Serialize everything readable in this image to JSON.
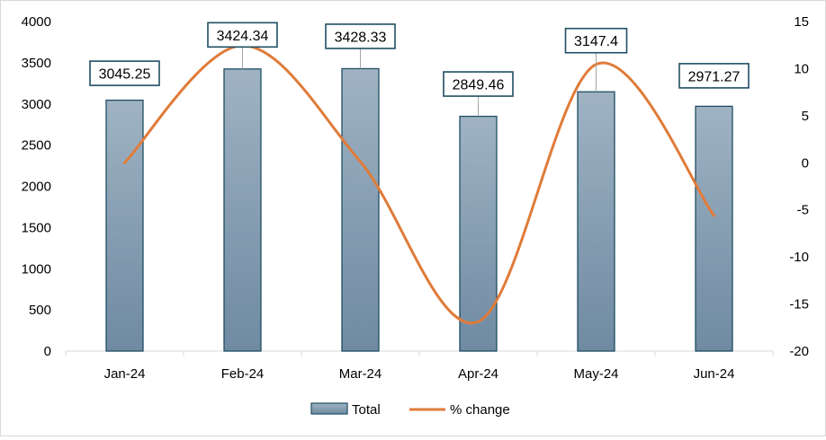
{
  "chart_data": {
    "type": "bar",
    "categories": [
      "Jan-24",
      "Feb-24",
      "Mar-24",
      "Apr-24",
      "May-24",
      "Jun-24"
    ],
    "series": [
      {
        "name": "Total",
        "type": "bar",
        "axis": "left",
        "values": [
          3045.25,
          3424.34,
          3428.33,
          2849.46,
          3147.4,
          2971.27
        ],
        "data_labels": [
          "3045.25",
          "3424.34",
          "3428.33",
          "2849.46",
          "3147.4",
          "2971.27"
        ]
      },
      {
        "name": "% change",
        "type": "line",
        "axis": "right",
        "smooth": true,
        "values": [
          0,
          12.45,
          0.12,
          -16.88,
          10.46,
          -5.6
        ]
      }
    ],
    "y_left": {
      "min": 0,
      "max": 4000,
      "step": 500,
      "ticks": [
        "0",
        "500",
        "1000",
        "1500",
        "2000",
        "2500",
        "3000",
        "3500",
        "4000"
      ]
    },
    "y_right": {
      "min": -20,
      "max": 15,
      "step": 5,
      "ticks": [
        "-20",
        "-15",
        "-10",
        "-5",
        "0",
        "5",
        "10",
        "15"
      ]
    },
    "grid": false,
    "legend_position": "bottom",
    "colors": {
      "bar_top": "#9fb3c3",
      "bar_bottom": "#6f8aa2",
      "bar_edge": "#1f4e63",
      "line": "#e07b39",
      "label_border": "#1f4e63",
      "axis": "#d9d9d9"
    }
  }
}
